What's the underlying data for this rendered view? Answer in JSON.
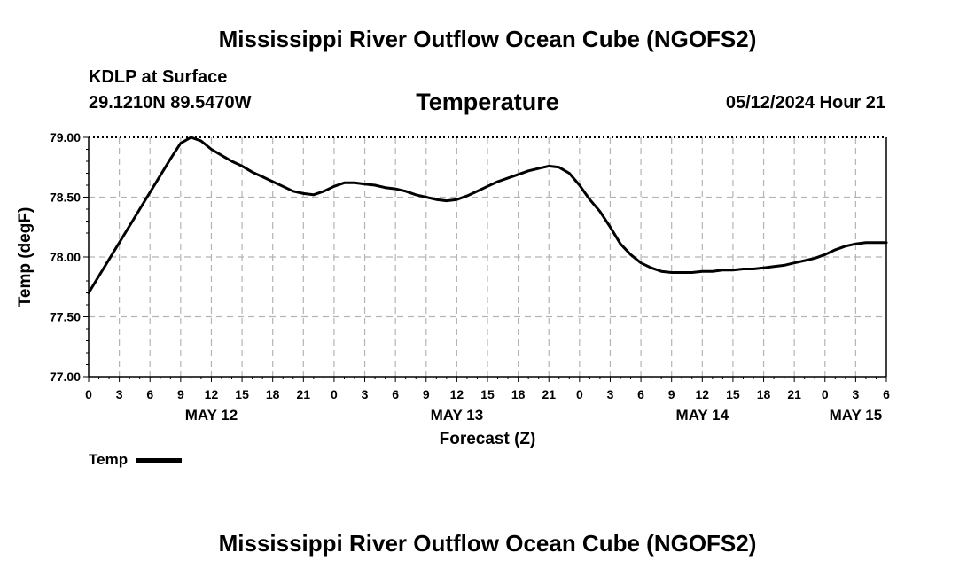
{
  "header": {
    "title": "Mississippi River Outflow Ocean Cube (NGOFS2)",
    "station": "KDLP at Surface",
    "coords": "29.1210N  89.5470W",
    "variable": "Temperature",
    "datetime": "05/12/2024 Hour 21"
  },
  "footer": {
    "title": "Mississippi River Outflow Ocean Cube (NGOFS2)"
  },
  "legend": {
    "label": "Temp"
  },
  "chart_data": {
    "type": "line",
    "title": "Temperature",
    "xlabel": "Forecast (Z)",
    "ylabel": "Temp (degF)",
    "xlim": [
      0,
      78
    ],
    "ylim": [
      77.0,
      79.0
    ],
    "grid": true,
    "legend_position": "bottom-left",
    "x_ticks": [
      0,
      3,
      6,
      9,
      12,
      15,
      18,
      21,
      24,
      27,
      30,
      33,
      36,
      39,
      42,
      45,
      48,
      51,
      54,
      57,
      60,
      63,
      66,
      69,
      72,
      75,
      78
    ],
    "x_tick_labels": [
      "0",
      "3",
      "6",
      "9",
      "12",
      "15",
      "18",
      "21",
      "0",
      "3",
      "6",
      "9",
      "12",
      "15",
      "18",
      "21",
      "0",
      "3",
      "6",
      "9",
      "12",
      "15",
      "18",
      "21",
      "0",
      "3",
      "6"
    ],
    "y_ticks": [
      77.0,
      77.5,
      78.0,
      78.5,
      79.0
    ],
    "y_tick_labels": [
      "77.00",
      "77.50",
      "78.00",
      "78.50",
      "79.00"
    ],
    "date_labels": [
      {
        "x": 12,
        "label": "MAY 12"
      },
      {
        "x": 36,
        "label": "MAY 13"
      },
      {
        "x": 60,
        "label": "MAY 14"
      },
      {
        "x": 75,
        "label": "MAY 15"
      }
    ],
    "series": [
      {
        "name": "Temp",
        "x": [
          0,
          1,
          2,
          3,
          4,
          5,
          6,
          7,
          8,
          9,
          10,
          11,
          12,
          13,
          14,
          15,
          16,
          17,
          18,
          19,
          20,
          21,
          22,
          23,
          24,
          25,
          26,
          27,
          28,
          29,
          30,
          31,
          32,
          33,
          34,
          35,
          36,
          37,
          38,
          39,
          40,
          41,
          42,
          43,
          44,
          45,
          46,
          47,
          48,
          49,
          50,
          51,
          52,
          53,
          54,
          55,
          56,
          57,
          58,
          59,
          60,
          61,
          62,
          63,
          64,
          65,
          66,
          67,
          68,
          69,
          70,
          71,
          72,
          73,
          74,
          75,
          76,
          77,
          78
        ],
        "values": [
          77.7,
          77.84,
          77.98,
          78.12,
          78.26,
          78.4,
          78.54,
          78.68,
          78.82,
          78.95,
          79.0,
          78.97,
          78.9,
          78.85,
          78.8,
          78.76,
          78.71,
          78.67,
          78.63,
          78.59,
          78.55,
          78.53,
          78.52,
          78.55,
          78.59,
          78.62,
          78.62,
          78.61,
          78.6,
          78.58,
          78.57,
          78.55,
          78.52,
          78.5,
          78.48,
          78.47,
          78.48,
          78.51,
          78.55,
          78.59,
          78.63,
          78.66,
          78.69,
          78.72,
          78.74,
          78.76,
          78.75,
          78.7,
          78.6,
          78.48,
          78.38,
          78.25,
          78.11,
          78.02,
          77.95,
          77.91,
          77.88,
          77.87,
          77.87,
          77.87,
          77.88,
          77.88,
          77.89,
          77.89,
          77.9,
          77.9,
          77.91,
          77.92,
          77.93,
          77.95,
          77.97,
          77.99,
          78.02,
          78.06,
          78.09,
          78.11,
          78.12,
          78.12,
          78.12
        ]
      }
    ]
  }
}
